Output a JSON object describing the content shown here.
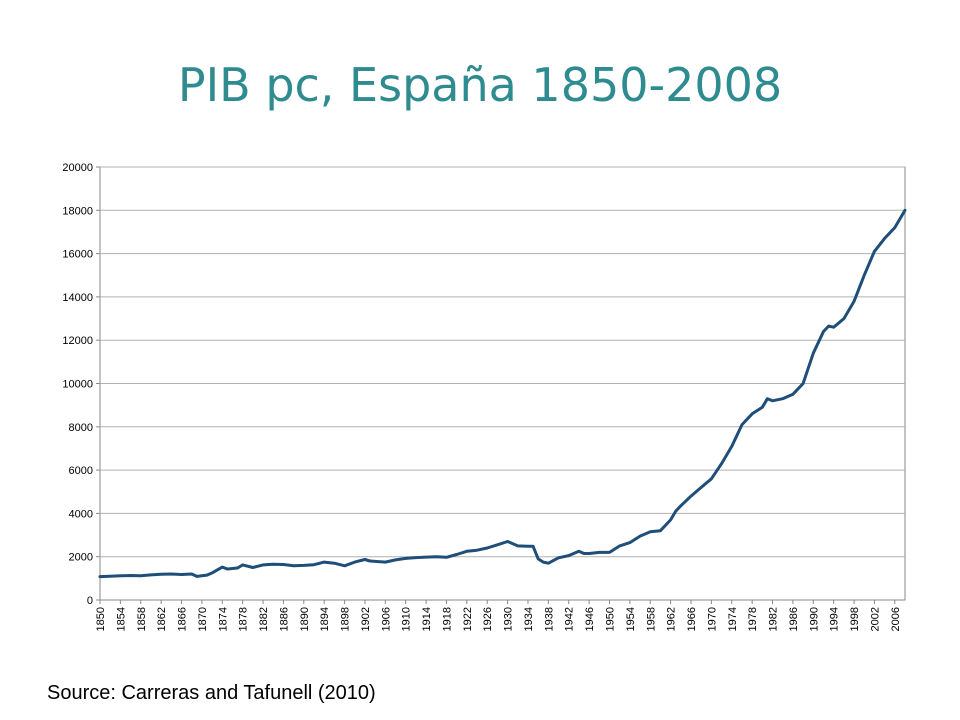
{
  "title": "PIB pc, España 1850-2008",
  "source": "Source: Carreras and Tafunell (2010)",
  "chart_data": {
    "type": "line",
    "title": "",
    "xlabel": "",
    "ylabel": "",
    "xlim": [
      1850,
      2008
    ],
    "ylim": [
      0,
      20000
    ],
    "grid": true,
    "line_color": "#1f4e79",
    "y_ticks": [
      "0",
      "2000",
      "4000",
      "6000",
      "8000",
      "10000",
      "12000",
      "14000",
      "16000",
      "18000",
      "20000"
    ],
    "x_ticks": [
      "1850",
      "1854",
      "1858",
      "1862",
      "1866",
      "1870",
      "1874",
      "1878",
      "1882",
      "1886",
      "1890",
      "1894",
      "1898",
      "1902",
      "1906",
      "1910",
      "1914",
      "1918",
      "1922",
      "1926",
      "1930",
      "1934",
      "1938",
      "1942",
      "1946",
      "1950",
      "1954",
      "1958",
      "1962",
      "1966",
      "1970",
      "1974",
      "1978",
      "1982",
      "1986",
      "1990",
      "1994",
      "1998",
      "2002",
      "2006"
    ],
    "series": [
      {
        "name": "",
        "points": [
          [
            1850,
            1080
          ],
          [
            1852,
            1100
          ],
          [
            1854,
            1120
          ],
          [
            1856,
            1130
          ],
          [
            1858,
            1120
          ],
          [
            1860,
            1160
          ],
          [
            1862,
            1190
          ],
          [
            1864,
            1200
          ],
          [
            1866,
            1180
          ],
          [
            1868,
            1200
          ],
          [
            1869,
            1090
          ],
          [
            1871,
            1150
          ],
          [
            1872,
            1250
          ],
          [
            1874,
            1520
          ],
          [
            1875,
            1430
          ],
          [
            1877,
            1480
          ],
          [
            1878,
            1620
          ],
          [
            1880,
            1500
          ],
          [
            1882,
            1620
          ],
          [
            1884,
            1650
          ],
          [
            1886,
            1640
          ],
          [
            1888,
            1580
          ],
          [
            1890,
            1600
          ],
          [
            1892,
            1630
          ],
          [
            1894,
            1750
          ],
          [
            1896,
            1700
          ],
          [
            1898,
            1580
          ],
          [
            1900,
            1750
          ],
          [
            1902,
            1870
          ],
          [
            1903,
            1800
          ],
          [
            1906,
            1750
          ],
          [
            1908,
            1850
          ],
          [
            1910,
            1920
          ],
          [
            1912,
            1960
          ],
          [
            1914,
            1980
          ],
          [
            1916,
            2000
          ],
          [
            1918,
            1970
          ],
          [
            1920,
            2100
          ],
          [
            1922,
            2250
          ],
          [
            1924,
            2300
          ],
          [
            1926,
            2400
          ],
          [
            1928,
            2550
          ],
          [
            1930,
            2700
          ],
          [
            1932,
            2500
          ],
          [
            1934,
            2480
          ],
          [
            1935,
            2480
          ],
          [
            1936,
            1900
          ],
          [
            1937,
            1750
          ],
          [
            1938,
            1700
          ],
          [
            1940,
            1950
          ],
          [
            1942,
            2050
          ],
          [
            1944,
            2250
          ],
          [
            1945,
            2150
          ],
          [
            1946,
            2150
          ],
          [
            1948,
            2200
          ],
          [
            1950,
            2200
          ],
          [
            1952,
            2500
          ],
          [
            1954,
            2650
          ],
          [
            1956,
            2950
          ],
          [
            1958,
            3150
          ],
          [
            1960,
            3200
          ],
          [
            1962,
            3700
          ],
          [
            1963,
            4100
          ],
          [
            1964,
            4350
          ],
          [
            1966,
            4800
          ],
          [
            1968,
            5200
          ],
          [
            1970,
            5600
          ],
          [
            1972,
            6300
          ],
          [
            1974,
            7100
          ],
          [
            1976,
            8100
          ],
          [
            1978,
            8600
          ],
          [
            1980,
            8900
          ],
          [
            1981,
            9300
          ],
          [
            1982,
            9200
          ],
          [
            1984,
            9300
          ],
          [
            1986,
            9500
          ],
          [
            1988,
            10000
          ],
          [
            1990,
            11400
          ],
          [
            1992,
            12400
          ],
          [
            1993,
            12650
          ],
          [
            1994,
            12600
          ],
          [
            1996,
            13000
          ],
          [
            1998,
            13800
          ],
          [
            2000,
            15000
          ],
          [
            2002,
            16100
          ],
          [
            2004,
            16700
          ],
          [
            2006,
            17200
          ],
          [
            2008,
            18000
          ]
        ]
      }
    ]
  }
}
